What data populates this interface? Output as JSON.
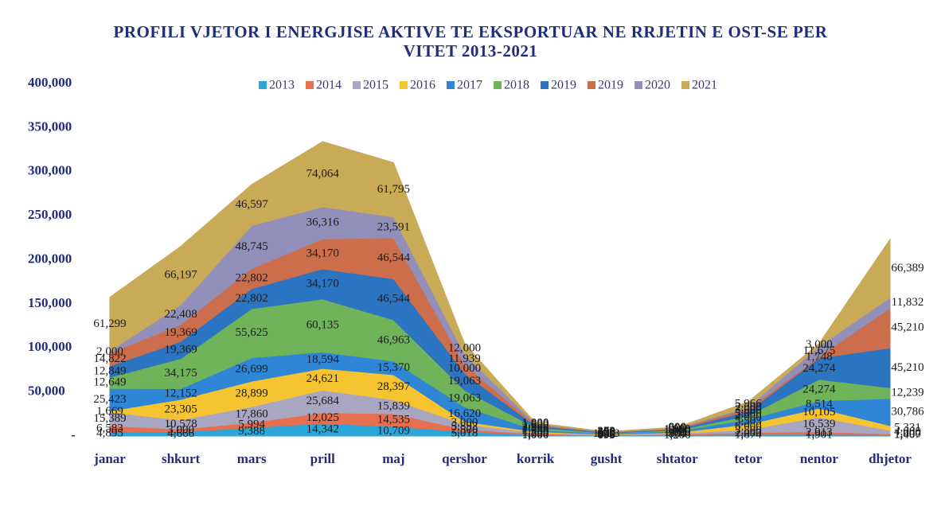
{
  "chart_data": {
    "type": "stacked_area",
    "title": "PROFILI VJETOR I ENERGJISE AKTIVE TE EKSPORTUAR NE RRJETIN E OST-SE PER VITET 2013-2021",
    "categories": [
      "janar",
      "shkurt",
      "mars",
      "prill",
      "maj",
      "qershor",
      "korrik",
      "gusht",
      "shtator",
      "tetor",
      "nentor",
      "dhjetor"
    ],
    "ylim": [
      0,
      400000
    ],
    "yticks": [
      {
        "value": 0,
        "label": "-"
      },
      {
        "value": 50000,
        "label": "50,000"
      },
      {
        "value": 100000,
        "label": "100,000"
      },
      {
        "value": 150000,
        "label": "150,000"
      },
      {
        "value": 200000,
        "label": "200,000"
      },
      {
        "value": 250000,
        "label": "250,000"
      },
      {
        "value": 300000,
        "label": "300,000"
      },
      {
        "value": 350000,
        "label": "350,000"
      },
      {
        "value": 400000,
        "label": "400,000"
      }
    ],
    "legend": "top",
    "series": [
      {
        "name": "2013",
        "color": "#2aa6d9",
        "values": [
          4895,
          4666,
          9388,
          14342,
          10709,
          5018,
          1000,
          695,
          1200,
          1874,
          1901,
          1407
        ],
        "value_labels": [
          "4,895",
          "4,666",
          "9,388",
          "14,342",
          "10,709",
          "5,018",
          "1,000",
          "695",
          "1,200",
          "1,874",
          "1,901",
          "1,407"
        ]
      },
      {
        "name": "2014",
        "color": "#e56f4f",
        "values": [
          6583,
          3000,
          5994,
          12025,
          14535,
          2500,
          1500,
          400,
          800,
          2000,
          2913,
          1000
        ],
        "value_labels": [
          "6,583",
          "3,000",
          "5,994",
          "12,025",
          "14,535",
          "2,500",
          "1,500",
          "400",
          "800",
          "2,000",
          "2,913",
          "1,000"
        ]
      },
      {
        "name": "2015",
        "color": "#a9a6c2",
        "values": [
          15389,
          10578,
          17860,
          25684,
          15839,
          5892,
          1200,
          300,
          900,
          3500,
          16539,
          4000
        ],
        "value_labels": [
          "15,389",
          "10,578",
          "17,860",
          "25,684",
          "15,839",
          "5,892",
          "1,200",
          "300",
          "900",
          "3,500",
          "16,539",
          "4,000"
        ]
      },
      {
        "name": "2016",
        "color": "#f5c430",
        "values": [
          1669,
          23305,
          28899,
          24621,
          28397,
          3000,
          1300,
          500,
          1000,
          6000,
          10105,
          5331
        ],
        "value_labels": [
          "1,669",
          "23,305",
          "28,899",
          "24,621",
          "28,397",
          "3,000",
          "1,300",
          "500",
          "1,000",
          "6,000",
          "10,105",
          "5,331"
        ]
      },
      {
        "name": "2017",
        "color": "#2f86d6",
        "values": [
          25423,
          12152,
          26699,
          18594,
          15370,
          16620,
          2000,
          1033,
          1500,
          5503,
          8514,
          30786
        ],
        "value_labels": [
          "25,423",
          "12,152",
          "26,699",
          "18,594",
          "15,370",
          "16,620",
          "2,000",
          "1,033",
          "1,500",
          "5,503",
          "8,514",
          "30,786"
        ]
      },
      {
        "name": "2018",
        "color": "#6fb35a",
        "values": [
          12649,
          34175,
          55625,
          60135,
          46963,
          19063,
          2500,
          600,
          1300,
          4000,
          24274,
          12239
        ],
        "value_labels": [
          "12,649",
          "34,175",
          "55,625",
          "60,135",
          "46,963",
          "19,063",
          "2,500",
          "600",
          "1,300",
          "4,000",
          "24,274",
          "12,239"
        ]
      },
      {
        "name": "2019",
        "color": "#2b74c2",
        "values": [
          12849,
          19369,
          22802,
          34170,
          46544,
          19063,
          2000,
          500,
          1000,
          5000,
          24274,
          45210
        ],
        "value_labels": [
          "12,849",
          "19,369",
          "22,802",
          "34,170",
          "46,544",
          "19,063",
          "2,000",
          "500",
          "1,000",
          "5,000",
          "24,274",
          "45,210"
        ]
      },
      {
        "name": "2019",
        "color": "#cc6e4c",
        "values": [
          14822,
          19369,
          22802,
          34170,
          46544,
          10000,
          1500,
          400,
          900,
          3000,
          1748,
          45210
        ],
        "value_labels": [
          "14,822",
          "19,369",
          "22,802",
          "34,170",
          "46,544",
          "10,000",
          "1,500",
          "400",
          "900",
          "3,000",
          "1,748",
          "45,210"
        ]
      },
      {
        "name": "2020",
        "color": "#9290bb",
        "values": [
          2000,
          22408,
          48745,
          36316,
          23591,
          11939,
          1000,
          300,
          600,
          2000,
          11675,
          11832
        ],
        "value_labels": [
          "2,000",
          "22,408",
          "48,745",
          "36,316",
          "23,591",
          "11,939",
          "1,000",
          "300",
          "600",
          "2,000",
          "11,675",
          "11,832"
        ]
      },
      {
        "name": "2021",
        "color": "#c9aa57",
        "values": [
          61299,
          66197,
          46597,
          74064,
          61795,
          12000,
          1000,
          272,
          800,
          5966,
          3000,
          66389
        ],
        "value_labels": [
          "61,299",
          "66,197",
          "46,597",
          "74,064",
          "61,795",
          "12,000",
          "1,000",
          "272",
          "800",
          "5,966",
          "3,000",
          "66,389"
        ]
      }
    ]
  }
}
